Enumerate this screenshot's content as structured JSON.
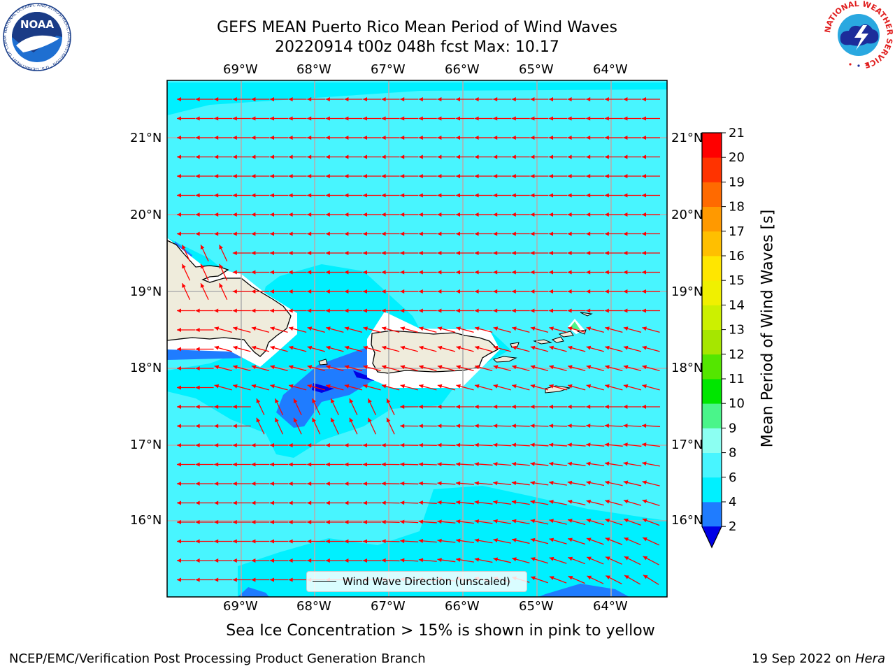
{
  "header": {
    "title_line1": "GEFS MEAN Puerto Rico Mean Period of Wind Waves",
    "title_line2": "20220914 t00z 048h fcst   Max: 10.17"
  },
  "logos": {
    "noaa_label": "NOAA",
    "noaa_ring_text": "NATIONAL OCEANIC AND ATMOSPHERIC ADMINISTRATION · U.S. DEPARTMENT OF COMMERCE",
    "nws_ring_text": "NATIONAL WEATHER SERVICE"
  },
  "map": {
    "lon_labels": [
      "69°W",
      "68°W",
      "67°W",
      "66°W",
      "65°W",
      "64°W"
    ],
    "lat_labels": [
      "21°N",
      "20°N",
      "19°N",
      "18°N",
      "17°N",
      "16°N"
    ],
    "legend_label": "Wind Wave Direction (unscaled)",
    "colors": {
      "ocean_base": "#48f5ff",
      "ocean_4_6": "#00f0ff",
      "ocean_2_4": "#1f7cff",
      "ocean_lt2": "#0000e6",
      "land": "#efecdc",
      "arrow": "#ff0000",
      "grid": "#b0b0b0"
    }
  },
  "colorbar": {
    "label": "Mean Period of Wind Waves [s]",
    "ticks": [
      "2",
      "4",
      "6",
      "8",
      "9",
      "10",
      "11",
      "12",
      "13",
      "14",
      "15",
      "16",
      "17",
      "18",
      "19",
      "20",
      "21"
    ],
    "colors": [
      "#0000e6",
      "#1f7cff",
      "#00f0ff",
      "#48f5ff",
      "#8cfff2",
      "#4af58a",
      "#00e600",
      "#54e600",
      "#a6e600",
      "#ccf000",
      "#f0f000",
      "#ffe600",
      "#ffbf00",
      "#ff9900",
      "#ff6a00",
      "#ff3300",
      "#ff0000"
    ]
  },
  "notes": {
    "sea_ice": "Sea Ice Concentration > 15% is shown in pink to yellow"
  },
  "footer": {
    "left": "NCEP/EMC/Verification Post Processing Product Generation Branch",
    "right_prefix": "19 Sep 2022 on ",
    "right_machine": "Hera"
  }
}
